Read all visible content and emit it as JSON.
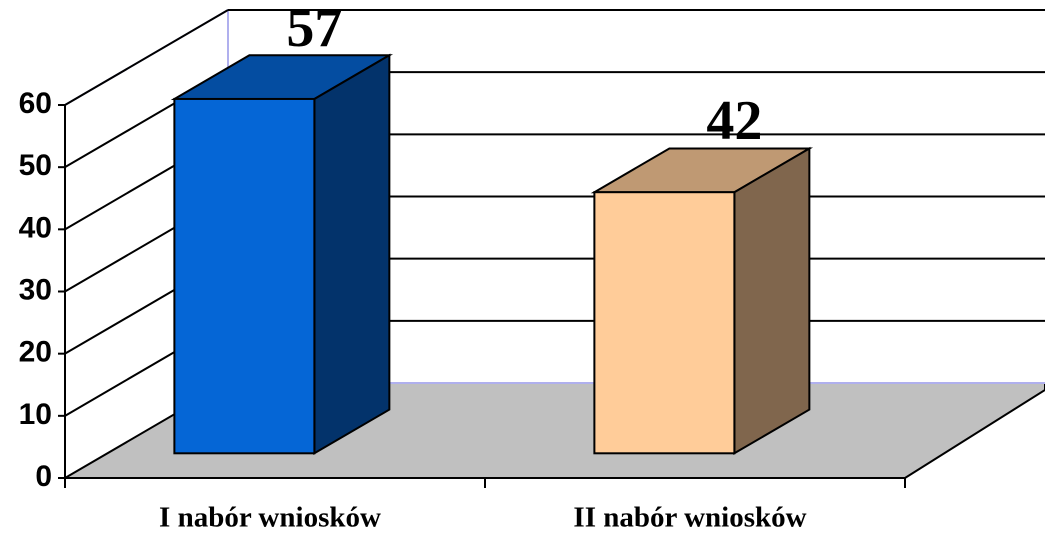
{
  "chart_data": {
    "type": "bar3d",
    "categories": [
      "I nabór wniosków",
      "II nabór wniosków"
    ],
    "values": [
      57,
      42
    ],
    "colors": [
      "#0566d6",
      "#ffcc99"
    ],
    "ylim": [
      0,
      60
    ],
    "yticks": [
      0,
      10,
      20,
      30,
      40,
      50,
      60
    ],
    "grid": true
  }
}
